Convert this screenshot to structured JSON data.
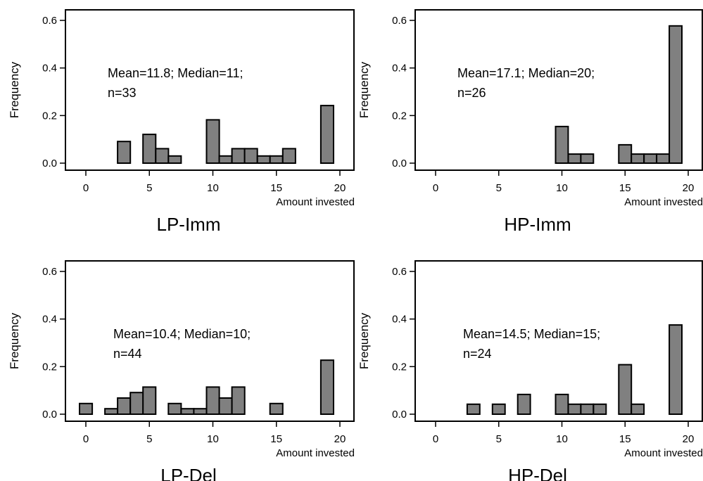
{
  "figure": {
    "ylabel": "Frequency",
    "xlabel": "Amount invested"
  },
  "chart_data": [
    {
      "type": "bar",
      "title": "LP-Imm",
      "annotation": [
        "Mean=11.8; Median=11;",
        "n=33"
      ],
      "xlabel": "Amount invested",
      "ylabel": "Frequency",
      "xlim": [
        -1.5,
        21
      ],
      "ylim": [
        -0.03,
        0.63
      ],
      "xticks": [
        0,
        5,
        10,
        15,
        20
      ],
      "yticks": [
        "0.0",
        "0.2",
        "0.4",
        "0.6"
      ],
      "x": [
        3,
        5,
        6,
        7,
        10,
        11,
        12,
        13,
        14,
        15,
        16,
        19
      ],
      "values": [
        0.091,
        0.121,
        0.061,
        0.03,
        0.182,
        0.03,
        0.061,
        0.061,
        0.03,
        0.03,
        0.061,
        0.242
      ]
    },
    {
      "type": "bar",
      "title": "HP-Imm",
      "annotation": [
        "Mean=17.1; Median=20;",
        "n=26"
      ],
      "xlabel": "Amount invested",
      "ylabel": "Frequency",
      "xlim": [
        -1.5,
        21
      ],
      "ylim": [
        -0.03,
        0.63
      ],
      "xticks": [
        0,
        5,
        10,
        15,
        20
      ],
      "yticks": [
        "0.0",
        "0.2",
        "0.4",
        "0.6"
      ],
      "x": [
        10,
        11,
        12,
        15,
        16,
        17,
        18,
        19
      ],
      "values": [
        0.154,
        0.038,
        0.038,
        0.077,
        0.038,
        0.038,
        0.038,
        0.577
      ]
    },
    {
      "type": "bar",
      "title": "LP-Del",
      "annotation": [
        "Mean=10.4; Median=10;",
        "n=44"
      ],
      "xlabel": "Amount invested",
      "ylabel": "Frequency",
      "xlim": [
        -1.5,
        21
      ],
      "ylim": [
        -0.03,
        0.63
      ],
      "xticks": [
        0,
        5,
        10,
        15,
        20
      ],
      "yticks": [
        "0.0",
        "0.2",
        "0.4",
        "0.6"
      ],
      "x": [
        0,
        2,
        3,
        4,
        5,
        7,
        8,
        9,
        10,
        11,
        12,
        15,
        19
      ],
      "values": [
        0.045,
        0.023,
        0.068,
        0.091,
        0.114,
        0.045,
        0.023,
        0.023,
        0.114,
        0.068,
        0.114,
        0.045,
        0.227
      ]
    },
    {
      "type": "bar",
      "title": "HP-Del",
      "annotation": [
        "Mean=14.5; Median=15;",
        "n=24"
      ],
      "xlabel": "Amount invested",
      "ylabel": "Frequency",
      "xlim": [
        -1.5,
        21
      ],
      "ylim": [
        -0.03,
        0.63
      ],
      "xticks": [
        0,
        5,
        10,
        15,
        20
      ],
      "yticks": [
        "0.0",
        "0.2",
        "0.4",
        "0.6"
      ],
      "x": [
        3,
        5,
        7,
        10,
        11,
        12,
        13,
        15,
        16,
        19
      ],
      "values": [
        0.042,
        0.042,
        0.083,
        0.083,
        0.042,
        0.042,
        0.042,
        0.208,
        0.042,
        0.375
      ]
    }
  ]
}
